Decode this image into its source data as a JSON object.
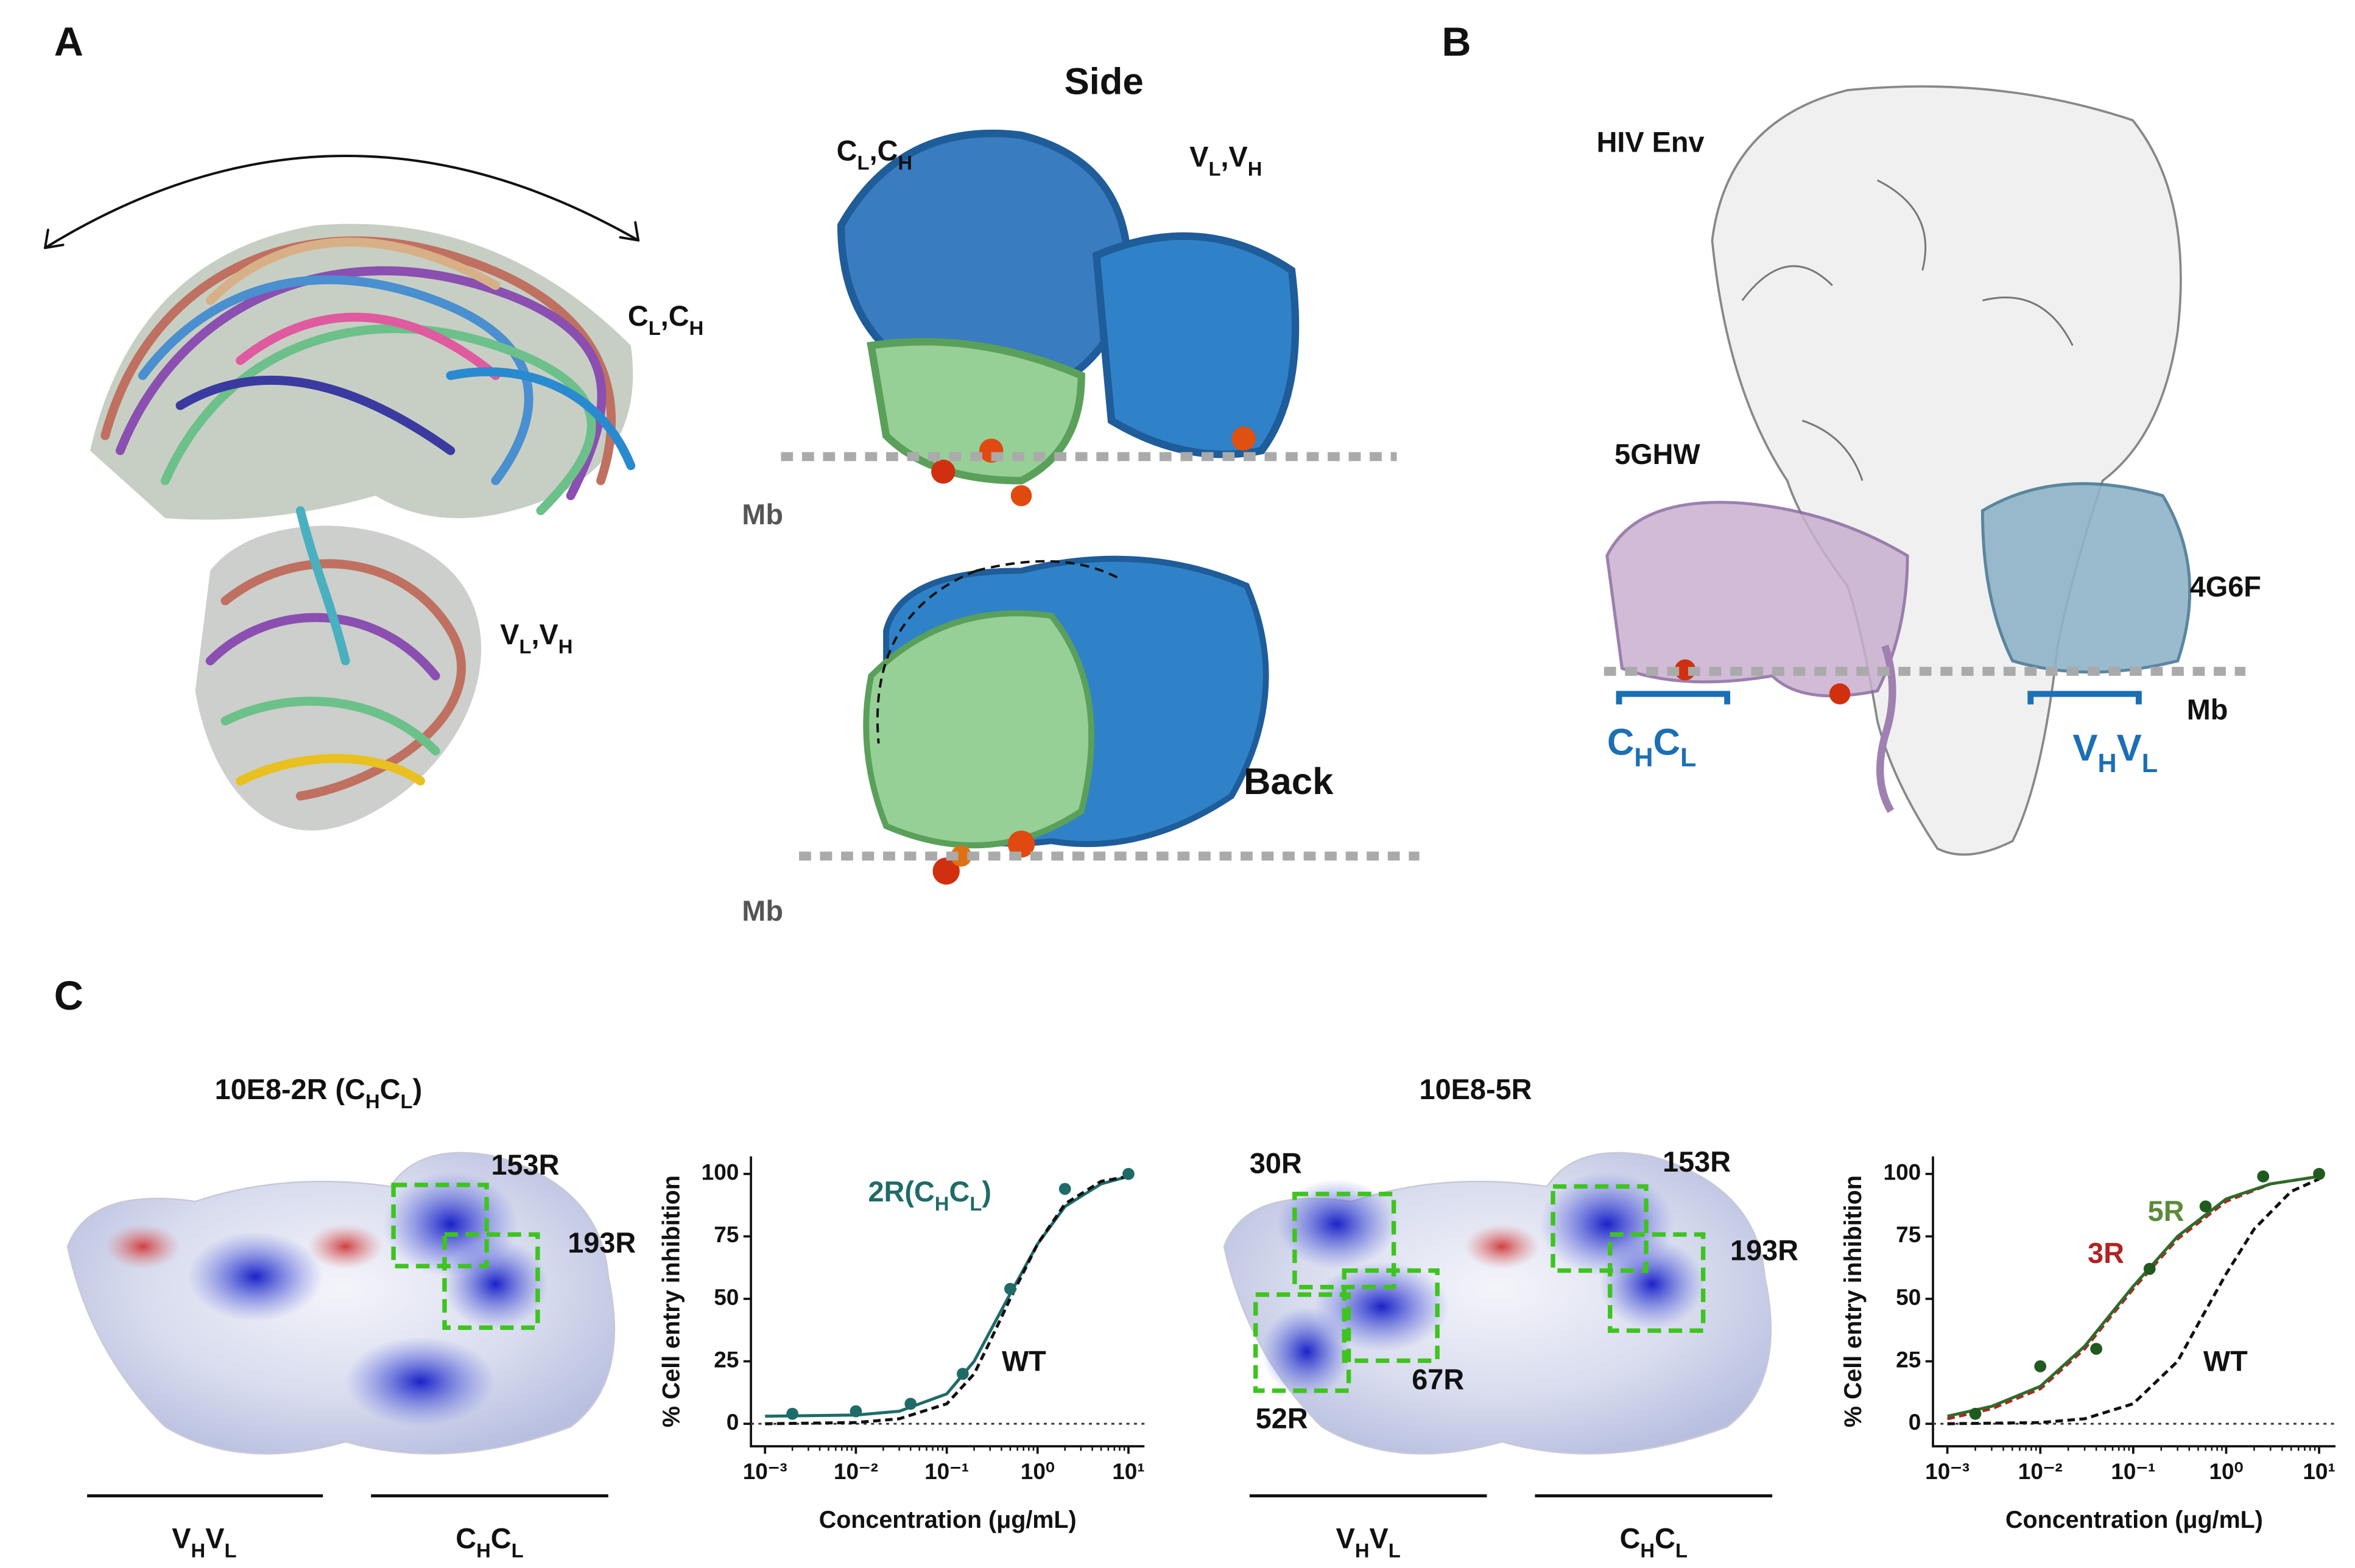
{
  "panel_a": {
    "label": "A",
    "ensemble_domain_1": [
      {
        "text": "C"
      },
      {
        "sub": "L"
      },
      {
        "text": ",C"
      },
      {
        "sub": "H"
      }
    ],
    "ensemble_domain_2": [
      {
        "text": "V"
      },
      {
        "sub": "L"
      },
      {
        "text": ",V"
      },
      {
        "sub": "H"
      }
    ],
    "side_title": "Side",
    "side_domain_1": [
      {
        "text": "C"
      },
      {
        "sub": "L"
      },
      {
        "text": ",C"
      },
      {
        "sub": "H"
      }
    ],
    "side_domain_2": [
      {
        "text": "V"
      },
      {
        "sub": "L"
      },
      {
        "text": ",V"
      },
      {
        "sub": "H"
      }
    ],
    "membrane_1": "Mb",
    "back_title": "Back",
    "membrane_2": "Mb"
  },
  "panel_b": {
    "label": "B",
    "density": "HIV Env",
    "structure_1": "5GHW",
    "structure_2": "4G6F",
    "membrane": "Mb",
    "domain_1": [
      {
        "text": "C"
      },
      {
        "sub": "H"
      },
      {
        "text": "C"
      },
      {
        "sub": "L"
      }
    ],
    "domain_2": [
      {
        "text": "V"
      },
      {
        "sub": "H"
      },
      {
        "text": "V"
      },
      {
        "sub": "L"
      }
    ]
  },
  "panel_c": {
    "label": "C",
    "left": {
      "title": [
        {
          "text": "10E8-2R (C"
        },
        {
          "sub": "H"
        },
        {
          "text": "C"
        },
        {
          "sub": "L"
        },
        {
          "text": ")"
        }
      ],
      "sites": [
        "153R",
        "193R"
      ],
      "domain_1": [
        {
          "text": "V"
        },
        {
          "sub": "H"
        },
        {
          "text": "V"
        },
        {
          "sub": "L"
        }
      ],
      "domain_2": [
        {
          "text": "C"
        },
        {
          "sub": "H"
        },
        {
          "text": "C"
        },
        {
          "sub": "L"
        }
      ]
    },
    "right": {
      "title": [
        {
          "text": "10E8-5R"
        }
      ],
      "sites": [
        "30R",
        "153R",
        "193R",
        "67R",
        "52R"
      ],
      "domain_1": [
        {
          "text": "V"
        },
        {
          "sub": "H"
        },
        {
          "text": "V"
        },
        {
          "sub": "L"
        }
      ],
      "domain_2": [
        {
          "text": "C"
        },
        {
          "sub": "H"
        },
        {
          "text": "C"
        },
        {
          "sub": "L"
        }
      ]
    }
  },
  "chart_data": [
    {
      "type": "line",
      "xscale": "log",
      "x_label": "Concentration (μg/mL)",
      "y_label": "% Cell entry inhibition",
      "xlim": [
        0.0007,
        15
      ],
      "ylim": [
        -9,
        107
      ],
      "xticks": [
        {
          "value": 0.001,
          "label": "10⁻³"
        },
        {
          "value": 0.01,
          "label": "10⁻²"
        },
        {
          "value": 0.1,
          "label": "10⁻¹"
        },
        {
          "value": 1,
          "label": "10⁰"
        },
        {
          "value": 10,
          "label": "10¹"
        }
      ],
      "yticks": [
        0,
        25,
        50,
        75,
        100
      ],
      "series": [
        {
          "color": "#1f6b68",
          "line_style": "solid",
          "x": [
            0.001,
            0.01,
            0.03,
            0.1,
            0.2,
            0.3,
            0.5,
            1,
            2,
            5,
            10
          ],
          "values": [
            3,
            3.5,
            5,
            12,
            25,
            37,
            52,
            72,
            87,
            96,
            99
          ]
        },
        {
          "color": "#111111",
          "line_style": "dashed",
          "x": [
            0.001,
            0.01,
            0.03,
            0.1,
            0.2,
            0.3,
            0.5,
            1,
            2,
            5,
            10
          ],
          "values": [
            0,
            0.5,
            2,
            8,
            20,
            33,
            50,
            72,
            88,
            97,
            99
          ]
        },
        {
          "color": "#1f6b68",
          "line_style": "none",
          "markers": true,
          "x": [
            0.002,
            0.01,
            0.04,
            0.15,
            0.5,
            2,
            10
          ],
          "values": [
            4,
            5,
            8,
            20,
            54,
            94,
            100
          ]
        }
      ],
      "annotations": [
        {
          "color": "#1f6b68",
          "parts": [
            {
              "text": "2R(C"
            },
            {
              "sub": "H"
            },
            {
              "text": "C"
            },
            {
              "sub": "L"
            },
            {
              "text": ")"
            }
          ]
        },
        {
          "color": "#111111",
          "parts": [
            {
              "text": "WT"
            }
          ]
        }
      ]
    },
    {
      "type": "line",
      "xscale": "log",
      "x_label": "Concentration (μg/mL)",
      "y_label": "% Cell entry inhibition",
      "xlim": [
        0.0007,
        15
      ],
      "ylim": [
        -9,
        107
      ],
      "xticks": [
        {
          "value": 0.001,
          "label": "10⁻³"
        },
        {
          "value": 0.01,
          "label": "10⁻²"
        },
        {
          "value": 0.1,
          "label": "10⁻¹"
        },
        {
          "value": 1,
          "label": "10⁰"
        },
        {
          "value": 10,
          "label": "10¹"
        }
      ],
      "yticks": [
        0,
        25,
        50,
        75,
        100
      ],
      "series": [
        {
          "color": "#111111",
          "line_style": "dashed",
          "x": [
            0.001,
            0.01,
            0.03,
            0.1,
            0.3,
            0.5,
            1,
            2,
            5,
            10
          ],
          "values": [
            0,
            0.5,
            2,
            8,
            25,
            40,
            60,
            78,
            93,
            98
          ]
        },
        {
          "color": "#b22222",
          "line_style": "dashed",
          "x": [
            0.001,
            0.003,
            0.01,
            0.03,
            0.1,
            0.3,
            1,
            3,
            10
          ],
          "values": [
            2,
            6,
            14,
            30,
            54,
            74,
            89,
            96,
            99
          ]
        },
        {
          "color": "#2f6b2a",
          "line_style": "solid",
          "x": [
            0.001,
            0.003,
            0.01,
            0.03,
            0.1,
            0.3,
            1,
            3,
            10
          ],
          "values": [
            3,
            7,
            15,
            31,
            55,
            75,
            90,
            96,
            99
          ]
        },
        {
          "color": "#1f5a1f",
          "line_style": "none",
          "markers": true,
          "x": [
            0.002,
            0.01,
            0.04,
            0.15,
            0.6,
            2.5,
            10
          ],
          "values": [
            4,
            23,
            30,
            62,
            87,
            99,
            100
          ]
        }
      ],
      "annotations": [
        {
          "color": "#5a8a3a",
          "parts": [
            {
              "text": "5R"
            }
          ]
        },
        {
          "color": "#b22222",
          "parts": [
            {
              "text": "3R"
            }
          ]
        },
        {
          "color": "#111111",
          "parts": [
            {
              "text": "WT"
            }
          ]
        }
      ]
    }
  ]
}
